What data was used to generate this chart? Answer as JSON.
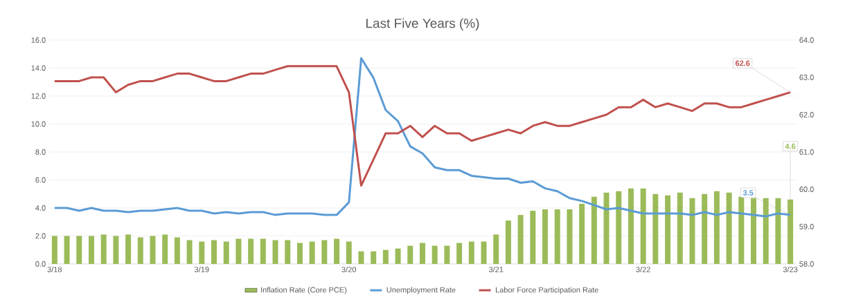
{
  "chart_data": {
    "type": "bar",
    "title": "Last Five Years (%)",
    "categories": [
      "3/18",
      null,
      null,
      null,
      null,
      null,
      null,
      null,
      null,
      null,
      null,
      null,
      "3/19",
      null,
      null,
      null,
      null,
      null,
      null,
      null,
      null,
      null,
      null,
      null,
      "3/20",
      null,
      null,
      null,
      null,
      null,
      null,
      null,
      null,
      null,
      null,
      null,
      "3/21",
      null,
      null,
      null,
      null,
      null,
      null,
      null,
      null,
      null,
      null,
      null,
      "3/22",
      null,
      null,
      null,
      null,
      null,
      null,
      null,
      null,
      null,
      null,
      null,
      "3/23"
    ],
    "series": [
      {
        "name": "Inflation Rate (Core PCE)",
        "color": "#9bbb59",
        "values": [
          2.0,
          2.0,
          2.0,
          2.0,
          2.1,
          2.0,
          2.1,
          1.9,
          2.0,
          2.1,
          1.9,
          1.7,
          1.6,
          1.7,
          1.6,
          1.8,
          1.8,
          1.8,
          1.7,
          1.7,
          1.5,
          1.6,
          1.7,
          1.8,
          1.6,
          0.9,
          0.9,
          1.0,
          1.1,
          1.3,
          1.5,
          1.3,
          1.3,
          1.5,
          1.6,
          1.6,
          2.1,
          3.1,
          3.5,
          3.8,
          3.9,
          3.9,
          3.9,
          4.3,
          4.8,
          5.1,
          5.2,
          5.4,
          5.4,
          5.0,
          4.9,
          5.1,
          4.7,
          5.0,
          5.2,
          5.1,
          4.8,
          4.7,
          4.7,
          4.7,
          4.6
        ],
        "value_labels": [
          null,
          null,
          null,
          null,
          null,
          null,
          null,
          null,
          null,
          null,
          null,
          null,
          null,
          null,
          null,
          null,
          null,
          null,
          null,
          null,
          null,
          null,
          null,
          null,
          null,
          null,
          null,
          null,
          null,
          null,
          null,
          null,
          null,
          null,
          null,
          null,
          null,
          null,
          null,
          null,
          null,
          null,
          null,
          null,
          null,
          null,
          null,
          null,
          null,
          null,
          null,
          null,
          null,
          null,
          null,
          null,
          null,
          null,
          null,
          null,
          "4.6"
        ]
      },
      {
        "name": "Unemployment Rate",
        "type": "line",
        "color": "#5b9bd5",
        "values": [
          4.0,
          4.0,
          3.8,
          4.0,
          3.8,
          3.8,
          3.7,
          3.8,
          3.8,
          3.9,
          4.0,
          3.8,
          3.8,
          3.6,
          3.7,
          3.6,
          3.7,
          3.7,
          3.5,
          3.6,
          3.6,
          3.6,
          3.5,
          3.5,
          4.4,
          14.7,
          13.3,
          11.0,
          10.2,
          8.4,
          7.9,
          6.9,
          6.7,
          6.7,
          6.3,
          6.2,
          6.1,
          6.1,
          5.8,
          5.9,
          5.4,
          5.2,
          4.7,
          4.5,
          4.2,
          3.9,
          4.0,
          3.8,
          3.6,
          3.6,
          3.6,
          3.6,
          3.5,
          3.7,
          3.5,
          3.7,
          3.6,
          3.5,
          3.4,
          3.6,
          3.5
        ],
        "value_labels": [
          null,
          null,
          null,
          null,
          null,
          null,
          null,
          null,
          null,
          null,
          null,
          null,
          null,
          null,
          null,
          null,
          null,
          null,
          null,
          null,
          null,
          null,
          null,
          null,
          null,
          null,
          null,
          null,
          null,
          null,
          null,
          null,
          null,
          null,
          null,
          null,
          null,
          null,
          null,
          null,
          null,
          null,
          null,
          null,
          null,
          null,
          null,
          null,
          null,
          null,
          null,
          null,
          null,
          null,
          null,
          null,
          null,
          null,
          null,
          null,
          "3.5"
        ]
      },
      {
        "name": "Labor Force Participation Rate",
        "type": "line",
        "axis": "y2",
        "color": "#c0504d",
        "values": [
          62.9,
          62.9,
          62.9,
          63.0,
          63.0,
          62.6,
          62.8,
          62.9,
          62.9,
          63.0,
          63.1,
          63.1,
          63.0,
          62.9,
          62.9,
          63.0,
          63.1,
          63.1,
          63.2,
          63.3,
          63.3,
          63.3,
          63.3,
          63.3,
          62.6,
          60.1,
          60.8,
          61.5,
          61.5,
          61.7,
          61.4,
          61.7,
          61.5,
          61.5,
          61.3,
          61.4,
          61.5,
          61.6,
          61.5,
          61.7,
          61.8,
          61.7,
          61.7,
          61.8,
          61.9,
          62.0,
          62.2,
          62.2,
          62.4,
          62.2,
          62.3,
          62.2,
          62.1,
          62.3,
          62.3,
          62.2,
          62.2,
          62.3,
          62.4,
          62.5,
          62.6
        ],
        "value_labels": [
          null,
          null,
          null,
          null,
          null,
          null,
          null,
          null,
          null,
          null,
          null,
          null,
          null,
          null,
          null,
          null,
          null,
          null,
          null,
          null,
          null,
          null,
          null,
          null,
          null,
          null,
          null,
          null,
          null,
          null,
          null,
          null,
          null,
          null,
          null,
          null,
          null,
          null,
          null,
          null,
          null,
          null,
          null,
          null,
          null,
          null,
          null,
          null,
          null,
          null,
          null,
          null,
          null,
          null,
          null,
          null,
          null,
          null,
          null,
          null,
          "62.6"
        ]
      }
    ],
    "ylim": [
      0,
      16
    ],
    "yticks": [
      {
        "value": 0,
        "label": "0.0"
      },
      {
        "value": 2,
        "label": "2.0"
      },
      {
        "value": 4,
        "label": "4.0"
      },
      {
        "value": 6,
        "label": "6.0"
      },
      {
        "value": 8,
        "label": "8.0"
      },
      {
        "value": 10,
        "label": "10.0"
      },
      {
        "value": 12,
        "label": "12.0"
      },
      {
        "value": 14,
        "label": "14.0"
      },
      {
        "value": 16,
        "label": "16.0"
      }
    ],
    "y2lim": [
      58,
      64
    ],
    "y2ticks": [
      {
        "value": 58,
        "label": "58.0"
      },
      {
        "value": 59,
        "label": "59.0"
      },
      {
        "value": 60,
        "label": "60.0"
      },
      {
        "value": 61,
        "label": "61.0"
      },
      {
        "value": 62,
        "label": "62.0"
      },
      {
        "value": 63,
        "label": "63.0"
      },
      {
        "value": 64,
        "label": "64.0"
      }
    ],
    "grid": "y",
    "legend": "bottom"
  }
}
